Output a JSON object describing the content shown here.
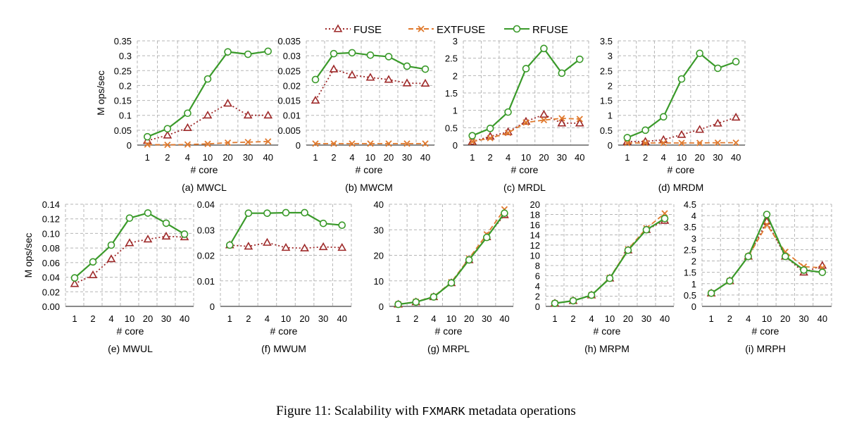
{
  "figure": {
    "caption_prefix": "Figure 11:  Scalability with ",
    "caption_mono": "FXMARK",
    "caption_suffix": " metadata operations"
  },
  "colors": {
    "FUSE": "#9e2a2a",
    "EXTFUSE": "#e07a2e",
    "RFUSE": "#3a9a2a",
    "grid": "#b5b5b5",
    "axis": "#444444"
  },
  "legend": [
    {
      "name": "FUSE",
      "marker": "triangle",
      "dash": "2,3"
    },
    {
      "name": "EXTFUSE",
      "marker": "x",
      "dash": "7,4"
    },
    {
      "name": "RFUSE",
      "marker": "circle",
      "dash": ""
    }
  ],
  "chart_data": [
    {
      "type": "line",
      "title": "(a) MWCL",
      "xlabel": "# core",
      "ylabel": "M ops/sec",
      "categories": [
        "1",
        "2",
        "4",
        "10",
        "20",
        "30",
        "40"
      ],
      "ylim": [
        0,
        0.35
      ],
      "yticks": [
        "0",
        "0.05",
        "0.1",
        "0.15",
        "0.2",
        "0.25",
        "0.3",
        "0.35"
      ],
      "series": [
        {
          "name": "FUSE",
          "values": [
            0.015,
            0.033,
            0.058,
            0.1,
            0.14,
            0.1,
            0.1
          ]
        },
        {
          "name": "EXTFUSE",
          "values": [
            0.002,
            0.001,
            0.002,
            0.004,
            0.008,
            0.01,
            0.012
          ]
        },
        {
          "name": "RFUSE",
          "values": [
            0.028,
            0.055,
            0.107,
            0.222,
            0.313,
            0.305,
            0.315
          ]
        }
      ]
    },
    {
      "type": "line",
      "title": "(b) MWCM",
      "xlabel": "# core",
      "ylabel": "",
      "categories": [
        "1",
        "2",
        "4",
        "10",
        "20",
        "30",
        "40"
      ],
      "ylim": [
        0,
        0.035
      ],
      "yticks": [
        "0",
        "0.005",
        "0.01",
        "0.015",
        "0.02",
        "0.025",
        "0.03",
        "0.035"
      ],
      "series": [
        {
          "name": "FUSE",
          "values": [
            0.015,
            0.0255,
            0.0235,
            0.0227,
            0.022,
            0.0208,
            0.0207
          ]
        },
        {
          "name": "EXTFUSE",
          "values": [
            0.0005,
            0.0005,
            0.0005,
            0.0005,
            0.0005,
            0.0005,
            0.0005
          ]
        },
        {
          "name": "RFUSE",
          "values": [
            0.022,
            0.0307,
            0.031,
            0.0302,
            0.0297,
            0.0265,
            0.0255
          ]
        }
      ]
    },
    {
      "type": "line",
      "title": "(c) MRDL",
      "xlabel": "# core",
      "ylabel": "",
      "categories": [
        "1",
        "2",
        "4",
        "10",
        "20",
        "30",
        "40"
      ],
      "ylim": [
        0,
        3
      ],
      "yticks": [
        "0",
        "0.5",
        "1",
        "1.5",
        "2",
        "2.5",
        "3"
      ],
      "series": [
        {
          "name": "FUSE",
          "values": [
            0.1,
            0.25,
            0.38,
            0.68,
            0.88,
            0.63,
            0.63
          ]
        },
        {
          "name": "EXTFUSE",
          "values": [
            0.1,
            0.2,
            0.35,
            0.65,
            0.72,
            0.77,
            0.75
          ]
        },
        {
          "name": "RFUSE",
          "values": [
            0.27,
            0.48,
            0.95,
            2.2,
            2.78,
            2.07,
            2.47
          ]
        }
      ]
    },
    {
      "type": "line",
      "title": "(d) MRDM",
      "xlabel": "# core",
      "ylabel": "",
      "categories": [
        "1",
        "2",
        "4",
        "10",
        "20",
        "30",
        "40"
      ],
      "ylim": [
        0,
        3.5
      ],
      "yticks": [
        "0",
        "0.5",
        "1",
        "1.5",
        "2",
        "2.5",
        "3",
        "3.5"
      ],
      "series": [
        {
          "name": "FUSE",
          "values": [
            0.12,
            0.12,
            0.18,
            0.35,
            0.52,
            0.73,
            0.93
          ]
        },
        {
          "name": "EXTFUSE",
          "values": [
            0.07,
            0.07,
            0.07,
            0.07,
            0.07,
            0.08,
            0.08
          ]
        },
        {
          "name": "RFUSE",
          "values": [
            0.25,
            0.5,
            0.95,
            2.22,
            3.08,
            2.58,
            2.8
          ]
        }
      ]
    },
    {
      "type": "line",
      "title": "(e) MWUL",
      "xlabel": "# core",
      "ylabel": "M ops/sec",
      "categories": [
        "1",
        "2",
        "4",
        "10",
        "20",
        "30",
        "40"
      ],
      "ylim": [
        0,
        0.14
      ],
      "yticks": [
        "0.00",
        "0.02",
        "0.04",
        "0.06",
        "0.08",
        "0.10",
        "0.12",
        "0.14"
      ],
      "series": [
        {
          "name": "FUSE",
          "values": [
            0.031,
            0.043,
            0.065,
            0.087,
            0.092,
            0.096,
            0.095
          ]
        },
        {
          "name": "RFUSE",
          "values": [
            0.039,
            0.061,
            0.084,
            0.121,
            0.128,
            0.114,
            0.099
          ]
        }
      ]
    },
    {
      "type": "line",
      "title": "(f) MWUM",
      "xlabel": "# core",
      "ylabel": "",
      "categories": [
        "1",
        "2",
        "4",
        "10",
        "20",
        "30",
        "40"
      ],
      "ylim": [
        0,
        0.04
      ],
      "yticks": [
        "0",
        "0.01",
        "0.02",
        "0.03",
        "0.04"
      ],
      "series": [
        {
          "name": "FUSE",
          "values": [
            0.024,
            0.0235,
            0.025,
            0.023,
            0.0228,
            0.0233,
            0.023
          ]
        },
        {
          "name": "RFUSE",
          "values": [
            0.024,
            0.0365,
            0.0365,
            0.0367,
            0.0367,
            0.0325,
            0.0318
          ]
        }
      ]
    },
    {
      "type": "line",
      "title": "(g) MRPL",
      "xlabel": "# core",
      "ylabel": "",
      "categories": [
        "1",
        "2",
        "4",
        "10",
        "20",
        "30",
        "40"
      ],
      "ylim": [
        0,
        40
      ],
      "yticks": [
        "0",
        "10",
        "20",
        "30",
        "40"
      ],
      "series": [
        {
          "name": "FUSE",
          "values": [
            0.8,
            1.7,
            3.7,
            9.2,
            18.2,
            27.2,
            35.8
          ]
        },
        {
          "name": "EXTFUSE",
          "values": [
            0.8,
            1.8,
            3.8,
            9.5,
            18.8,
            28.2,
            38.0
          ]
        },
        {
          "name": "RFUSE",
          "values": [
            0.8,
            1.7,
            3.7,
            9.2,
            18.2,
            27.0,
            36.5
          ]
        }
      ]
    },
    {
      "type": "line",
      "title": "(h) MRPM",
      "xlabel": "# core",
      "ylabel": "",
      "categories": [
        "1",
        "2",
        "4",
        "10",
        "20",
        "30",
        "40"
      ],
      "ylim": [
        0,
        20
      ],
      "yticks": [
        "0",
        "2",
        "4",
        "6",
        "8",
        "10",
        "12",
        "14",
        "16",
        "18",
        "20"
      ],
      "series": [
        {
          "name": "FUSE",
          "values": [
            0.6,
            1.1,
            2.2,
            5.5,
            11.0,
            15.0,
            16.8
          ]
        },
        {
          "name": "EXTFUSE",
          "values": [
            0.6,
            1.1,
            2.2,
            5.6,
            11.2,
            15.3,
            18.2
          ]
        },
        {
          "name": "RFUSE",
          "values": [
            0.6,
            1.1,
            2.2,
            5.5,
            11.0,
            15.0,
            17.2
          ]
        }
      ]
    },
    {
      "type": "line",
      "title": "(i) MRPH",
      "xlabel": "# core",
      "ylabel": "",
      "categories": [
        "1",
        "2",
        "4",
        "10",
        "20",
        "30",
        "40"
      ],
      "ylim": [
        0,
        4.5
      ],
      "yticks": [
        "0",
        "0.5",
        "1",
        "1.5",
        "2",
        "2.5",
        "3",
        "3.5",
        "4",
        "4.5"
      ],
      "series": [
        {
          "name": "FUSE",
          "values": [
            0.58,
            1.12,
            2.2,
            3.75,
            2.2,
            1.5,
            1.8
          ]
        },
        {
          "name": "EXTFUSE",
          "values": [
            0.58,
            1.12,
            2.2,
            3.6,
            2.4,
            1.75,
            1.7
          ]
        },
        {
          "name": "RFUSE",
          "values": [
            0.58,
            1.12,
            2.2,
            4.05,
            2.2,
            1.6,
            1.5
          ]
        }
      ]
    }
  ]
}
